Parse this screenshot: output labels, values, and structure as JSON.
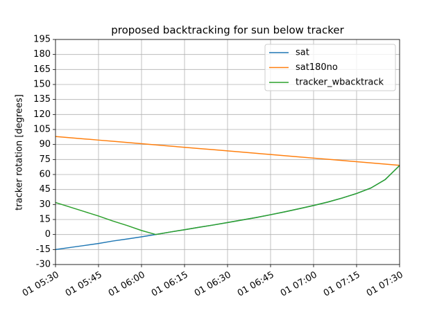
{
  "chart_data": {
    "type": "line",
    "title": "proposed backtracking for sun below tracker",
    "y_label": "tracker rotation [degrees]",
    "x": [
      "01 05:30",
      "01 05:35",
      "01 05:40",
      "01 05:45",
      "01 05:50",
      "01 05:55",
      "01 06:00",
      "01 06:05",
      "01 06:10",
      "01 06:15",
      "01 06:20",
      "01 06:25",
      "01 06:30",
      "01 06:35",
      "01 06:40",
      "01 06:45",
      "01 06:50",
      "01 06:55",
      "01 07:00",
      "01 07:05",
      "01 07:10",
      "01 07:15",
      "01 07:20",
      "01 07:25",
      "01 07:30"
    ],
    "series": [
      {
        "name": "sat",
        "color": "#1f77b4",
        "values": [
          -15,
          -13,
          -11,
          -9,
          -6.5,
          -4.5,
          -2.3,
          0,
          2.5,
          4.8,
          7.2,
          9.5,
          12,
          14.5,
          17,
          19.8,
          22.7,
          25.8,
          29,
          32.5,
          36.5,
          41,
          46.5,
          55,
          69
        ]
      },
      {
        "name": "sat180no",
        "color": "#ff7f0e",
        "values": [
          98,
          96.8,
          95.6,
          94.4,
          93.2,
          92,
          90.8,
          89.6,
          88.4,
          87.2,
          86,
          84.8,
          83.6,
          82.4,
          81.2,
          80,
          78.8,
          77.6,
          76.4,
          75.2,
          74,
          72.8,
          71.6,
          70.4,
          69.2
        ]
      },
      {
        "name": "tracker_wbacktrack",
        "color": "#2ca02c",
        "values": [
          32,
          27.5,
          23,
          18.5,
          13.5,
          9,
          4,
          0,
          2.5,
          4.8,
          7.2,
          9.5,
          12,
          14.5,
          17,
          19.8,
          22.7,
          25.8,
          29,
          32.5,
          36.5,
          41,
          46.5,
          55,
          69
        ]
      }
    ],
    "xlim": [
      "01 05:30",
      "01 07:30"
    ],
    "xticks": [
      "01 05:30",
      "01 05:45",
      "01 06:00",
      "01 06:15",
      "01 06:30",
      "01 06:45",
      "01 07:00",
      "01 07:15",
      "01 07:30"
    ],
    "ylim": [
      -30,
      195
    ],
    "yticks": [
      -30,
      -15,
      0,
      15,
      30,
      45,
      60,
      75,
      90,
      105,
      120,
      135,
      150,
      165,
      180,
      195
    ],
    "grid": true,
    "legend": "upper right"
  }
}
